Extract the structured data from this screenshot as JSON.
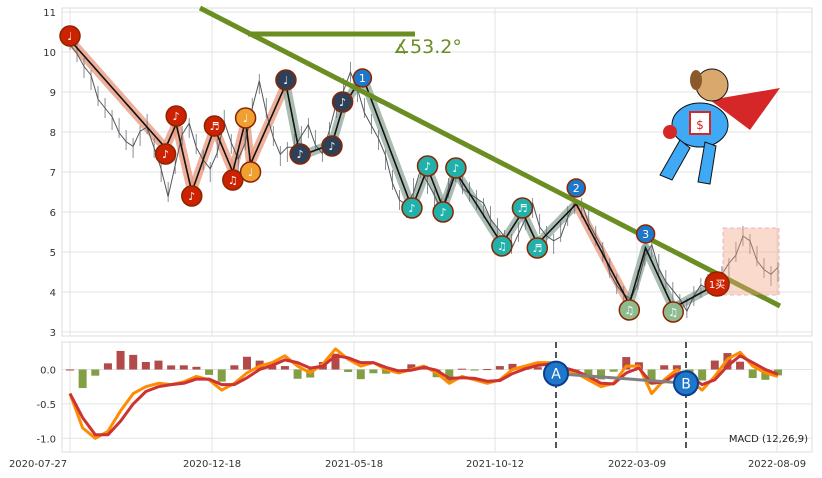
{
  "chart_data": [
    {
      "type": "line",
      "panel": "price",
      "title": "",
      "xlabel": "",
      "ylabel": "",
      "x_ticks": [
        "2020-07-27",
        "2020-12-18",
        "2021-05-18",
        "2021-10-12",
        "2022-03-09",
        "2022-08-09"
      ],
      "y_ticks": [
        3,
        4,
        5,
        6,
        7,
        8,
        9,
        10,
        11
      ],
      "ylim": [
        2.9,
        11.1
      ],
      "grid": true,
      "series": [
        {
          "values": [
            10.3,
            10.0,
            9.6,
            9.3,
            8.9,
            8.6,
            8.3,
            8.1,
            7.8,
            7.6,
            7.9,
            8.2,
            7.6,
            7.0,
            6.5,
            7.2,
            7.9,
            8.1,
            7.7,
            7.3,
            7.0,
            7.6,
            8.3,
            7.7,
            7.2,
            7.8,
            8.6,
            9.2,
            8.6,
            7.9,
            7.4,
            7.5,
            7.7,
            7.9,
            8.1,
            7.8,
            7.5,
            8.0,
            8.6,
            9.1,
            9.5,
            9.0,
            8.6,
            8.2,
            7.8,
            7.3,
            6.8,
            6.3,
            6.1,
            6.6,
            7.1,
            6.7,
            6.3,
            6.1,
            6.6,
            7.0,
            6.7,
            6.5,
            6.3,
            6.1,
            5.9,
            5.6,
            5.3,
            5.2,
            5.5,
            5.8,
            6.1,
            5.7,
            5.4,
            5.2,
            5.5,
            5.9,
            6.2,
            6.1,
            5.8,
            5.4,
            5.0,
            4.6,
            4.2,
            3.9,
            3.7,
            4.3,
            4.9,
            5.1,
            4.7,
            4.3,
            4.0,
            3.7,
            3.6,
            3.9,
            4.1,
            4.2,
            4.3,
            4.4,
            4.6,
            5.0,
            5.4,
            5.2,
            4.9,
            4.6,
            4.4,
            4.5
          ]
        }
      ],
      "annotations": {
        "angle_label": "∡53.2°",
        "markers": [
          {
            "label": "♩",
            "x": 0.0,
            "y": 10.4,
            "color": "#cc2200"
          },
          {
            "label": "♪",
            "x": 13.5,
            "y": 7.45,
            "color": "#cc2200"
          },
          {
            "label": "♪",
            "x": 15.0,
            "y": 8.4,
            "color": "#cc2200"
          },
          {
            "label": "♪",
            "x": 17.2,
            "y": 6.4,
            "color": "#cc2200"
          },
          {
            "label": "♬",
            "x": 20.4,
            "y": 8.15,
            "color": "#cc2200"
          },
          {
            "label": "♫",
            "x": 23.0,
            "y": 6.8,
            "color": "#cc2200"
          },
          {
            "label": "♩",
            "x": 24.8,
            "y": 8.35,
            "color": "#f0a030"
          },
          {
            "label": "♩",
            "x": 25.5,
            "y": 7.0,
            "color": "#f0a030"
          },
          {
            "label": "♩",
            "x": 30.5,
            "y": 9.3,
            "color": "#2e4057"
          },
          {
            "label": "♪",
            "x": 32.5,
            "y": 7.45,
            "color": "#2e4057"
          },
          {
            "label": "♪",
            "x": 37.0,
            "y": 7.65,
            "color": "#2e4057"
          },
          {
            "label": "♪",
            "x": 38.5,
            "y": 8.75,
            "color": "#2e4057"
          },
          {
            "label": "1",
            "x": 41.3,
            "y": 9.35,
            "color": "#1f77c9"
          },
          {
            "label": "♪",
            "x": 48.3,
            "y": 6.1,
            "color": "#20b2aa"
          },
          {
            "label": "♪",
            "x": 50.5,
            "y": 7.15,
            "color": "#20b2aa"
          },
          {
            "label": "♪",
            "x": 52.7,
            "y": 6.0,
            "color": "#20b2aa"
          },
          {
            "label": "♪",
            "x": 54.5,
            "y": 7.1,
            "color": "#20b2aa"
          },
          {
            "label": "♫",
            "x": 61.0,
            "y": 5.15,
            "color": "#20b2aa"
          },
          {
            "label": "♬",
            "x": 63.9,
            "y": 6.1,
            "color": "#20b2aa"
          },
          {
            "label": "♬",
            "x": 66.0,
            "y": 5.1,
            "color": "#20b2aa"
          },
          {
            "label": "2",
            "x": 71.5,
            "y": 6.6,
            "color": "#1f77c9"
          },
          {
            "label": "♫",
            "x": 79.0,
            "y": 3.55,
            "color": "#8fbc8f"
          },
          {
            "label": "3",
            "x": 81.3,
            "y": 5.45,
            "color": "#1f77c9"
          },
          {
            "label": "♫",
            "x": 85.2,
            "y": 3.5,
            "color": "#8fbc8f"
          },
          {
            "label": "1买",
            "x": 91.4,
            "y": 4.2,
            "color": "#cc2200"
          }
        ]
      },
      "colors": {
        "trendline": "#6b8e23",
        "pattern_red": "#e9967a",
        "pattern_gray": "#8fa89a",
        "zigzag": "#111111",
        "price": "#555555"
      }
    },
    {
      "type": "line",
      "panel": "macd",
      "title": "",
      "legend": "MACD (12,26,9)",
      "y_ticks": [
        "0.0",
        "-0.5",
        "-1.0"
      ],
      "ylim": [
        -1.2,
        0.4
      ],
      "grid": true,
      "series": [
        {
          "values": [
            -0.35,
            -0.85,
            -1.0,
            -0.9,
            -0.6,
            -0.35,
            -0.25,
            -0.2,
            -0.22,
            -0.18,
            -0.1,
            -0.15,
            -0.3,
            -0.2,
            -0.05,
            0.05,
            0.1,
            0.2,
            0.05,
            -0.05,
            0.08,
            0.3,
            0.15,
            0.05,
            0.1,
            0.0,
            -0.05,
            0.0,
            0.05,
            -0.05,
            -0.2,
            -0.1,
            -0.15,
            -0.2,
            -0.15,
            0.0,
            0.05,
            0.1,
            0.1,
            0.0,
            -0.05,
            -0.15,
            -0.25,
            -0.2,
            0.05,
            0.05,
            -0.35,
            -0.15,
            0.0,
            -0.15,
            -0.3,
            -0.1,
            0.15,
            0.25,
            0.05,
            -0.05,
            -0.1
          ]
        },
        {
          "values": [
            -0.35,
            -0.7,
            -0.95,
            -0.95,
            -0.75,
            -0.5,
            -0.32,
            -0.25,
            -0.22,
            -0.2,
            -0.14,
            -0.14,
            -0.22,
            -0.22,
            -0.12,
            0.0,
            0.06,
            0.14,
            0.1,
            0.02,
            0.05,
            0.2,
            0.17,
            0.1,
            0.1,
            0.03,
            -0.02,
            -0.01,
            0.03,
            -0.01,
            -0.13,
            -0.12,
            -0.13,
            -0.17,
            -0.16,
            -0.06,
            0.01,
            0.06,
            0.08,
            0.03,
            -0.02,
            -0.1,
            -0.2,
            -0.21,
            -0.05,
            0.02,
            -0.2,
            -0.18,
            -0.06,
            -0.1,
            -0.22,
            -0.15,
            0.05,
            0.2,
            0.1,
            0.0,
            -0.07
          ]
        }
      ],
      "annotations": {
        "point_labels": [
          "A",
          "B"
        ]
      },
      "colors": {
        "line1": "#ff8c00",
        "line2": "#cc3333",
        "bars_pos": "#a52a2a",
        "bars_neg": "#6b8e23",
        "connector": "#808080",
        "circle": "#1f77c9"
      }
    }
  ]
}
